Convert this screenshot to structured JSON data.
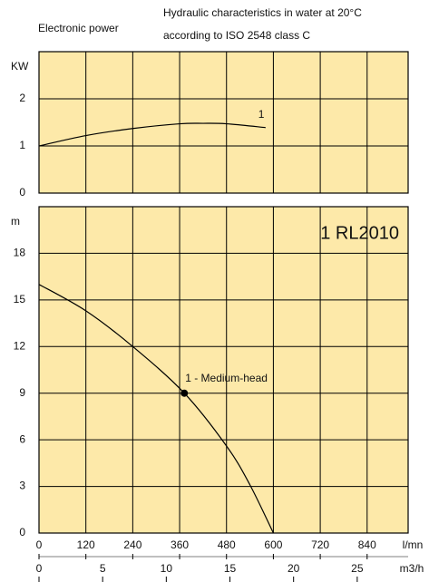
{
  "header": {
    "left": "Electronic power",
    "right": [
      "Hydraulic characteristics in water at 20°C",
      "according to ISO 2548 class C"
    ]
  },
  "chart_data": [
    {
      "type": "line",
      "ylabel": "KW",
      "ylim": [
        0,
        3
      ],
      "yticks": [
        0,
        1,
        2
      ],
      "xlim": [
        0,
        945
      ],
      "grid": true,
      "background": "#fde9a9",
      "series": [
        {
          "name": "1",
          "color": "#000000",
          "x": [
            0,
            120,
            240,
            360,
            420,
            480,
            580
          ],
          "values": [
            1.0,
            1.22,
            1.37,
            1.47,
            1.48,
            1.47,
            1.39
          ]
        }
      ]
    },
    {
      "type": "line",
      "title": "1 RL2010",
      "ylabel": "m",
      "ylim": [
        0,
        21
      ],
      "yticks": [
        0,
        3,
        6,
        9,
        12,
        15,
        18
      ],
      "xlim": [
        0,
        945
      ],
      "xticks": [
        0,
        120,
        240,
        360,
        480,
        600,
        720,
        840
      ],
      "xlabel": "l/mn",
      "x2lim": [
        0,
        29
      ],
      "x2ticks": [
        0,
        5,
        10,
        15,
        20,
        25
      ],
      "x2label": "m3/h",
      "grid": true,
      "background": "#fde9a9",
      "series": [
        {
          "color": "#000000",
          "x": [
            0,
            120,
            240,
            372,
            480,
            540,
            600
          ],
          "values": [
            16,
            14.3,
            12,
            9,
            5.6,
            3.1,
            0
          ]
        }
      ],
      "annotations": [
        {
          "text": "1 - Medium-head",
          "x": 372,
          "y": 9
        }
      ]
    }
  ]
}
